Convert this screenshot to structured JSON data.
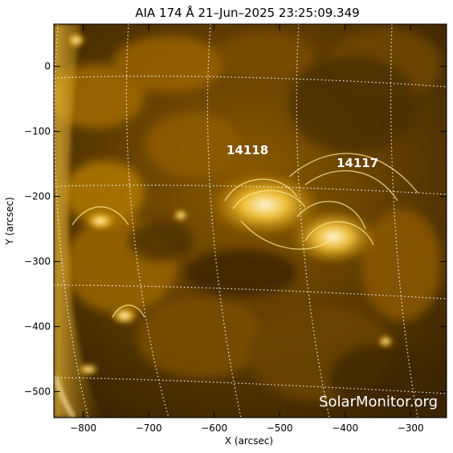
{
  "title": "AIA 174 Å 21–Jun–2025 23:25:09.349",
  "x_axis": {
    "label": "X (arcsec)",
    "range": [
      -845,
      -245
    ],
    "ticks": [
      -800,
      -700,
      -600,
      -500,
      -400,
      -300
    ],
    "tick_labels": [
      "−800",
      "−700",
      "−600",
      "−500",
      "−400",
      "−300"
    ]
  },
  "y_axis": {
    "label": "Y (arcsec)",
    "range": [
      -540,
      65
    ],
    "ticks": [
      0,
      -100,
      -200,
      -300,
      -400,
      -500
    ],
    "tick_labels": [
      "0",
      "−100",
      "−200",
      "−300",
      "−400",
      "−500"
    ]
  },
  "active_regions": [
    {
      "label": "14118",
      "x": -580,
      "y": -125
    },
    {
      "label": "14117",
      "x": -435,
      "y": -145
    }
  ],
  "watermark": "SolarMonitor.org",
  "colors": {
    "image_dark": "#2a1700",
    "image_mid": "#8a5a00",
    "image_bright": "#e0a000",
    "highlight": "#fff3c0",
    "grid": "#ffffff",
    "frame": "#000000"
  },
  "image": {
    "grid_lines": "dotted heliographic grid",
    "colormap": "SDO AIA 171/174 gold"
  }
}
